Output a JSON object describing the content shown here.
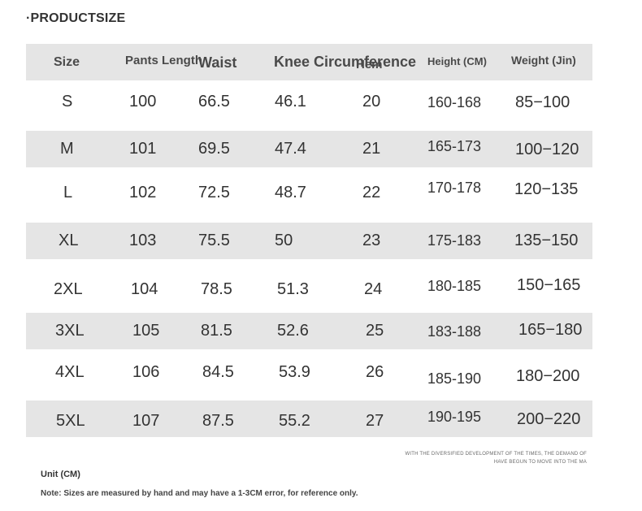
{
  "title": "·PRODUCTSIZE",
  "headers": {
    "size": "Size",
    "pants_length": "Pants Length",
    "waist": "Waist",
    "knee": "Knee Circumference",
    "hem": "Hem",
    "height": "Height (CM)",
    "weight": "Weight (Jin)"
  },
  "rows": [
    {
      "size": "S",
      "pants_length": "100",
      "waist": "66.5",
      "knee": "46.1",
      "hem": "20",
      "height": "160-168",
      "weight": "85−100"
    },
    {
      "size": "M",
      "pants_length": "101",
      "waist": "69.5",
      "knee": "47.4",
      "hem": "21",
      "height": "165-173",
      "weight": "100−120"
    },
    {
      "size": "L",
      "pants_length": "102",
      "waist": "72.5",
      "knee": "48.7",
      "hem": "22",
      "height": "170-178",
      "weight": "120−135"
    },
    {
      "size": "XL",
      "pants_length": "103",
      "waist": "75.5",
      "knee": "50",
      "hem": "23",
      "height": "175-183",
      "weight": "135−150"
    },
    {
      "size": "2XL",
      "pants_length": "104",
      "waist": "78.5",
      "knee": "51.3",
      "hem": "24",
      "height": "180-185",
      "weight": "150−165"
    },
    {
      "size": "3XL",
      "pants_length": "105",
      "waist": "81.5",
      "knee": "52.6",
      "hem": "25",
      "height": "183-188",
      "weight": "165−180"
    },
    {
      "size": "4XL",
      "pants_length": "106",
      "waist": "84.5",
      "knee": "53.9",
      "hem": "26",
      "height": "185-190",
      "weight": "180−200"
    },
    {
      "size": "5XL",
      "pants_length": "107",
      "waist": "87.5",
      "knee": "55.2",
      "hem": "27",
      "height": "190-195",
      "weight": "200−220"
    }
  ],
  "footer": {
    "tagline_1": "With the diversified development of the times, the demand of",
    "tagline_2": "have begun to move into the ma",
    "unit": "Unit (CM)",
    "note": "Note: Sizes are measured by hand and may have a 1-3CM error, for reference only."
  },
  "colors": {
    "band": "#e5e5e5",
    "text": "#333333",
    "header_text": "#4a4a4a"
  }
}
